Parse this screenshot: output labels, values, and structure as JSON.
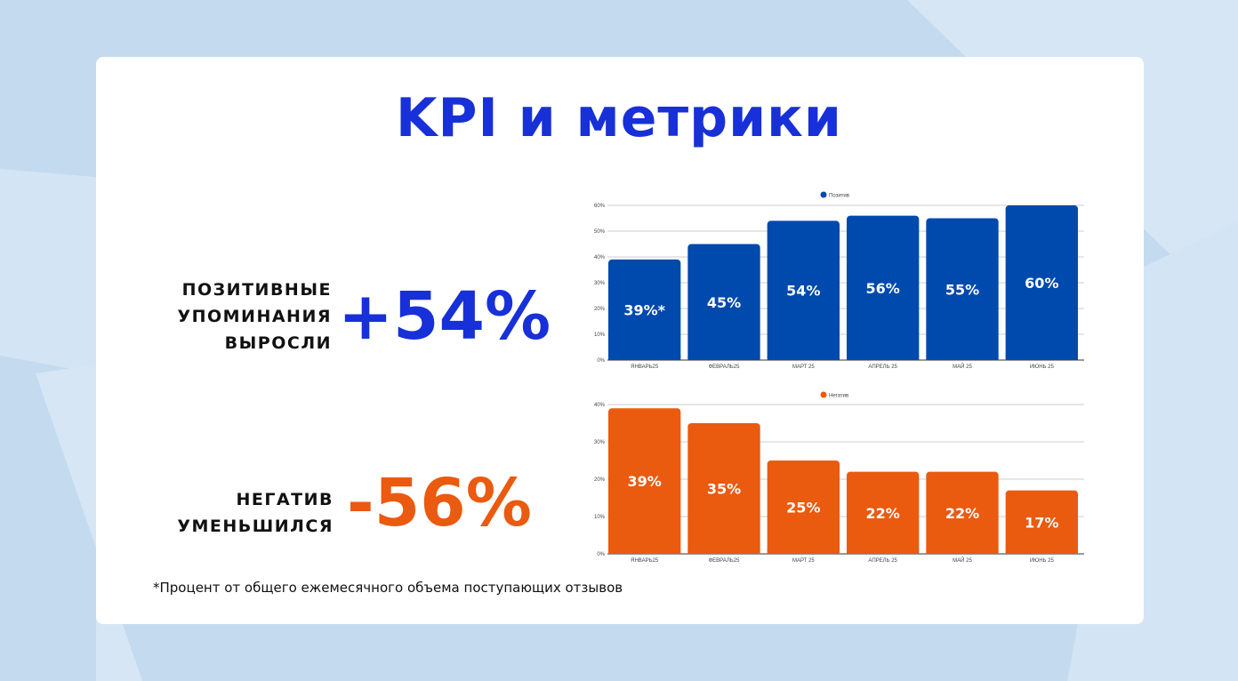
{
  "title": "KPI и метрики",
  "positive": {
    "label_lines": [
      "ПОЗИТИВНЫЕ",
      "УПОМИНАНИЯ",
      "ВЫРОСЛИ"
    ],
    "value": "+54%",
    "color": "#1730d8"
  },
  "negative": {
    "label_lines": [
      "НЕГАТИВ",
      "УМЕНЬШИЛСЯ"
    ],
    "value": "-56%",
    "color": "#ea5a0f"
  },
  "footnote": "*Процент от общего ежемесячного объема поступающих отзывов",
  "chart_data": [
    {
      "type": "bar",
      "legend": "Позитив",
      "color": "#0049ad",
      "categories": [
        "ЯНВАРЬ25",
        "ФЕВРАЛЬ25",
        "МАРТ 25",
        "АПРЕЛЬ 25",
        "МАЙ 25",
        "ИЮНЬ 25"
      ],
      "values": [
        39,
        45,
        54,
        56,
        55,
        60
      ],
      "data_labels": [
        "39%*",
        "45%",
        "54%",
        "56%",
        "55%",
        "60%"
      ],
      "yticks": [
        "0%",
        "10%",
        "20%",
        "30%",
        "40%",
        "50%",
        "60%"
      ],
      "ylim": [
        0,
        60
      ],
      "grid": true,
      "legend_position": "top"
    },
    {
      "type": "bar",
      "legend": "Негатив",
      "color": "#ea5a0f",
      "categories": [
        "ЯНВАРЬ25",
        "ФЕВРАЛЬ25",
        "МАРТ 25",
        "АПРЕЛЬ 25",
        "МАЙ 25",
        "ИЮНЬ 25"
      ],
      "values": [
        39,
        35,
        25,
        22,
        22,
        17
      ],
      "data_labels": [
        "39%",
        "35%",
        "25%",
        "22%",
        "22%",
        "17%"
      ],
      "yticks": [
        "0%",
        "10%",
        "20%",
        "30%",
        "40%"
      ],
      "ylim": [
        0,
        40
      ],
      "grid": true,
      "legend_position": "top"
    }
  ]
}
